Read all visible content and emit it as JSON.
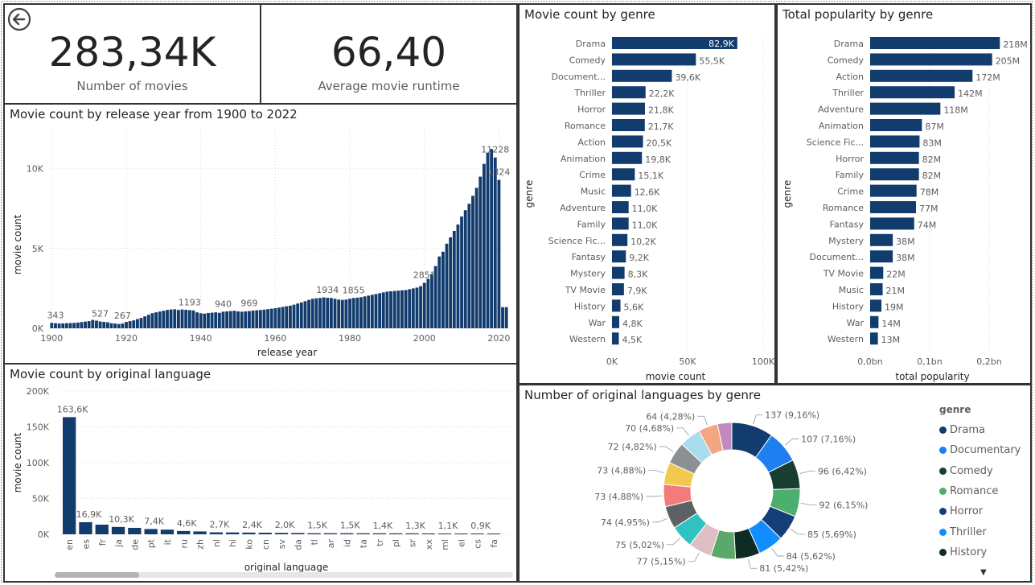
{
  "kpis": {
    "movies": {
      "value": "283,34K",
      "label": "Number of movies"
    },
    "runtime": {
      "value": "66,40",
      "label": "Average movie runtime"
    }
  },
  "colors": {
    "bar": "#123c6e",
    "highlight": "#123c6e",
    "grid": "#d9d9d9"
  },
  "icons": {
    "back": "arrow-left-circle-icon",
    "legend_more": "caret-down-icon"
  },
  "year_chart": {
    "title": "Movie count by release year from 1900 to 2022",
    "chart_data": {
      "type": "bar",
      "xlabel": "release year",
      "ylabel": "movie count",
      "xlim": [
        1900,
        2022
      ],
      "ylim": [
        0,
        12500
      ],
      "x_ticks": [
        "1900",
        "1920",
        "1940",
        "1960",
        "1980",
        "2000",
        "2020"
      ],
      "y_ticks": [
        "0K",
        "5K",
        "10K"
      ],
      "grid": true,
      "years": [
        1900,
        1901,
        1902,
        1903,
        1904,
        1905,
        1906,
        1907,
        1908,
        1909,
        1910,
        1911,
        1912,
        1913,
        1914,
        1915,
        1916,
        1917,
        1918,
        1919,
        1920,
        1921,
        1922,
        1923,
        1924,
        1925,
        1926,
        1927,
        1928,
        1929,
        1930,
        1931,
        1932,
        1933,
        1934,
        1935,
        1936,
        1937,
        1938,
        1939,
        1940,
        1941,
        1942,
        1943,
        1944,
        1945,
        1946,
        1947,
        1948,
        1949,
        1950,
        1951,
        1952,
        1953,
        1954,
        1955,
        1956,
        1957,
        1958,
        1959,
        1960,
        1961,
        1962,
        1963,
        1964,
        1965,
        1966,
        1967,
        1968,
        1969,
        1970,
        1971,
        1972,
        1973,
        1974,
        1975,
        1976,
        1977,
        1978,
        1979,
        1980,
        1981,
        1982,
        1983,
        1984,
        1985,
        1986,
        1987,
        1988,
        1989,
        1990,
        1991,
        1992,
        1993,
        1994,
        1995,
        1996,
        1997,
        1998,
        1999,
        2000,
        2001,
        2002,
        2003,
        2004,
        2005,
        2006,
        2007,
        2008,
        2009,
        2010,
        2011,
        2012,
        2013,
        2014,
        2015,
        2016,
        2017,
        2018,
        2019,
        2020,
        2021,
        2022
      ],
      "values": [
        343,
        320,
        300,
        310,
        320,
        330,
        340,
        360,
        390,
        420,
        450,
        527,
        480,
        430,
        400,
        380,
        320,
        300,
        267,
        300,
        400,
        450,
        500,
        580,
        650,
        750,
        850,
        950,
        1000,
        1050,
        1100,
        1150,
        1180,
        1193,
        1150,
        1180,
        1160,
        1140,
        1120,
        1000,
        940,
        920,
        960,
        980,
        1000,
        969,
        1040,
        1060,
        1080,
        1100,
        1060,
        1040,
        1060,
        1080,
        1110,
        1130,
        1150,
        1170,
        1200,
        1230,
        1260,
        1300,
        1340,
        1380,
        1420,
        1480,
        1550,
        1620,
        1700,
        1780,
        1850,
        1880,
        1900,
        1934,
        1910,
        1900,
        1850,
        1800,
        1780,
        1800,
        1855,
        1900,
        1920,
        1950,
        2000,
        2050,
        2100,
        2150,
        2200,
        2250,
        2300,
        2320,
        2340,
        2360,
        2380,
        2400,
        2450,
        2500,
        2550,
        2640,
        2851,
        3100,
        3400,
        3900,
        4500,
        4800,
        5300,
        5700,
        6100,
        6500,
        7000,
        7400,
        7800,
        8300,
        8800,
        9500,
        10300,
        11000,
        11228,
        10700,
        9300,
        1324,
        1324
      ],
      "data_labels": [
        {
          "year": 1901,
          "text": "343"
        },
        {
          "year": 1913,
          "text": "527"
        },
        {
          "year": 1919,
          "text": "267"
        },
        {
          "year": 1937,
          "text": "1193"
        },
        {
          "year": 1946,
          "text": "940"
        },
        {
          "year": 1953,
          "text": "969"
        },
        {
          "year": 1974,
          "text": "1934"
        },
        {
          "year": 1981,
          "text": "1855"
        },
        {
          "year": 2000,
          "text": "2851"
        },
        {
          "year": 2019,
          "text": "11228"
        },
        {
          "year": 2020,
          "text": "1324"
        }
      ]
    }
  },
  "lang_chart": {
    "title": "Movie count by original language",
    "chart_data": {
      "type": "bar",
      "xlabel": "original language",
      "ylabel": "movie count",
      "ylim": [
        0,
        200000
      ],
      "y_ticks": [
        "0K",
        "50K",
        "100K",
        "150K",
        "200K"
      ],
      "grid": true,
      "categories": [
        "en",
        "es",
        "fr",
        "ja",
        "de",
        "pt",
        "it",
        "ru",
        "zh",
        "nl",
        "hi",
        "ko",
        "cn",
        "sv",
        "da",
        "tl",
        "ar",
        "id",
        "ta",
        "tr",
        "pl",
        "sr",
        "xx",
        "ml",
        "el",
        "cs",
        "fa"
      ],
      "values": [
        163600,
        16900,
        13500,
        10300,
        9000,
        7400,
        6500,
        4600,
        4000,
        2700,
        2600,
        2400,
        2200,
        2000,
        1800,
        1500,
        1500,
        1500,
        1400,
        1400,
        1300,
        1300,
        1200,
        1100,
        1000,
        900,
        800
      ],
      "labels": [
        "163,6K",
        "16,9K",
        "",
        "10,3K",
        "",
        "7,4K",
        "",
        "4,6K",
        "",
        "2,7K",
        "",
        "2,4K",
        "",
        "2,0K",
        "",
        "1,5K",
        "",
        "1,5K",
        "",
        "1,4K",
        "",
        "1,3K",
        "",
        "1,1K",
        "",
        "0,9K",
        ""
      ]
    }
  },
  "genre_count_chart": {
    "title": "Movie count by genre",
    "chart_data": {
      "type": "bar",
      "orientation": "horizontal",
      "xlabel": "movie count",
      "ylabel": "genre",
      "xlim": [
        0,
        100000
      ],
      "x_ticks": [
        "0K",
        "50K",
        "100K"
      ],
      "categories": [
        "Drama",
        "Comedy",
        "Document...",
        "Thriller",
        "Horror",
        "Romance",
        "Action",
        "Animation",
        "Crime",
        "Music",
        "Adventure",
        "Family",
        "Science Fic...",
        "Fantasy",
        "Mystery",
        "TV Movie",
        "History",
        "War",
        "Western"
      ],
      "values": [
        82900,
        55500,
        39600,
        22200,
        21800,
        21700,
        20500,
        19800,
        15100,
        12600,
        11000,
        11000,
        10200,
        9200,
        8300,
        7900,
        5600,
        4800,
        4500
      ],
      "labels": [
        "82,9K",
        "55,5K",
        "39,6K",
        "22,2K",
        "21,8K",
        "21,7K",
        "20,5K",
        "19,8K",
        "15,1K",
        "12,6K",
        "11,0K",
        "11,0K",
        "10,2K",
        "9,2K",
        "8,3K",
        "7,9K",
        "5,6K",
        "4,8K",
        "4,5K"
      ]
    }
  },
  "popularity_chart": {
    "title": "Total popularity by genre",
    "chart_data": {
      "type": "bar",
      "orientation": "horizontal",
      "xlabel": "total popularity",
      "ylabel": "genre",
      "xlim": [
        0,
        250000000
      ],
      "x_ticks": [
        "0,0bn",
        "0,1bn",
        "0,2bn"
      ],
      "categories": [
        "Drama",
        "Comedy",
        "Action",
        "Thriller",
        "Adventure",
        "Animation",
        "Science Fic...",
        "Horror",
        "Family",
        "Crime",
        "Romance",
        "Fantasy",
        "Mystery",
        "Document...",
        "TV Movie",
        "Music",
        "History",
        "War",
        "Western"
      ],
      "values": [
        218000000,
        205000000,
        172000000,
        142000000,
        118000000,
        87000000,
        83000000,
        82000000,
        82000000,
        78000000,
        77000000,
        74000000,
        38000000,
        38000000,
        22000000,
        21000000,
        19000000,
        14000000,
        13000000
      ],
      "labels": [
        "218M",
        "205M",
        "172M",
        "142M",
        "118M",
        "87M",
        "83M",
        "82M",
        "82M",
        "78M",
        "77M",
        "74M",
        "38M",
        "38M",
        "22M",
        "21M",
        "19M",
        "14M",
        "13M"
      ]
    }
  },
  "donut_chart": {
    "title": "Number of original languages by genre",
    "chart_data": {
      "type": "pie",
      "donut": true,
      "values": [
        137,
        107,
        96,
        92,
        85,
        84,
        81,
        81,
        77,
        75,
        74,
        73,
        73,
        72,
        70,
        64,
        47
      ],
      "labels": [
        "137 (9,16%)",
        "107 (7,16%)",
        "96 (6,42%)",
        "92 (6,15%)",
        "85 (5,69%)",
        "84 (5,62%)",
        "81 (5,42%)",
        "",
        "77 (5,15%)",
        "75 (5,02%)",
        "74 (4,95%)",
        "73 (4,88%)",
        "73 (4,88%)",
        "72 (4,82%)",
        "70 (4,68%)",
        "64 (4,28%)",
        ""
      ],
      "colors": [
        "#123c6e",
        "#1f7ef0",
        "#183e33",
        "#4caf6e",
        "#143e78",
        "#118dff",
        "#0e2b24",
        "#5aa86a",
        "#dfbfc4",
        "#2fc2c0",
        "#5c6163",
        "#f47b7b",
        "#f2c94c",
        "#8c9094",
        "#a8dcef",
        "#f4a582",
        "#c08ac0"
      ],
      "legend": {
        "title": "genre",
        "items": [
          {
            "name": "Drama",
            "color": "#123c6e"
          },
          {
            "name": "Documentary",
            "color": "#1f7ef0"
          },
          {
            "name": "Comedy",
            "color": "#183e33"
          },
          {
            "name": "Romance",
            "color": "#4caf6e"
          },
          {
            "name": "Horror",
            "color": "#143e78"
          },
          {
            "name": "Thriller",
            "color": "#118dff"
          },
          {
            "name": "History",
            "color": "#0e2b24"
          }
        ]
      }
    }
  }
}
